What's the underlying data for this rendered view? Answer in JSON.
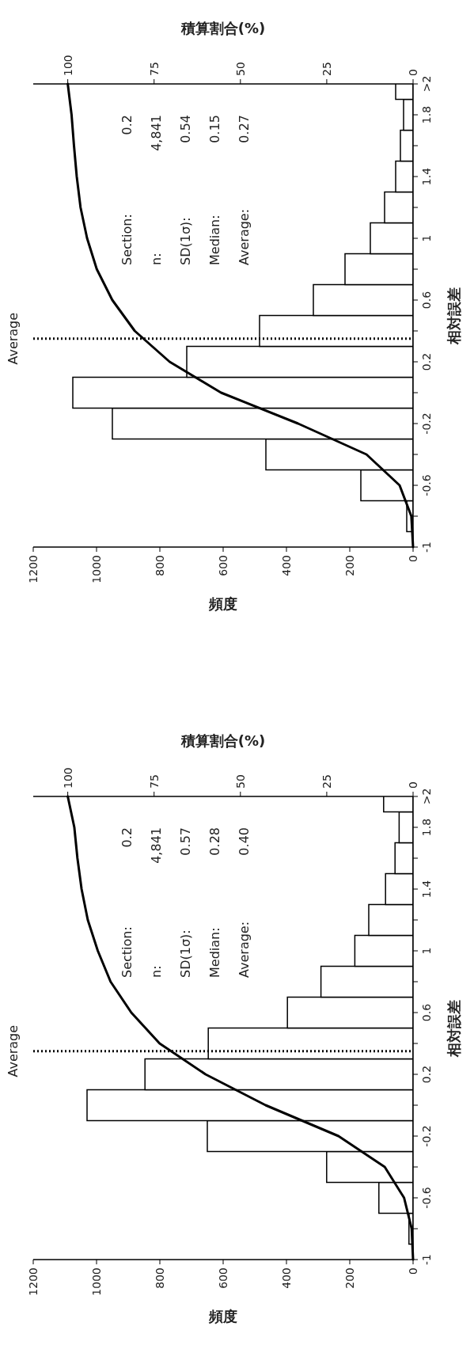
{
  "chart_data": [
    {
      "type": "bar",
      "orientation": "horizontal",
      "xlabel": "頻度",
      "ylabel": "相対誤差",
      "x2label": "積算割合(%)",
      "x": [
        -1,
        -0.8,
        -0.6,
        -0.4,
        -0.2,
        0,
        0.2,
        0.4,
        0.6,
        0.8,
        1,
        1.2,
        1.4,
        1.6,
        1.8,
        2
      ],
      "series": [
        {
          "color": "#ffffff",
          "values": [
            null,
            20,
            165,
            465,
            950,
            1075,
            715,
            485,
            315,
            215,
            135,
            90,
            55,
            40,
            30,
            55
          ]
        },
        {
          "type": "line",
          "axis": "x2",
          "color": "#000000",
          "values": [
            0,
            0.5,
            3.9,
            13.5,
            33.3,
            55.6,
            70.5,
            80.6,
            87.1,
            91.6,
            94.4,
            96.3,
            97.4,
            98.2,
            98.9,
            100
          ]
        }
      ],
      "ylim": [
        -1,
        2
      ],
      "yticks": [
        {
          "value": -1,
          "label": "-1"
        },
        {
          "value": -0.8,
          "label": null
        },
        {
          "value": -0.6,
          "label": "-0.6"
        },
        {
          "value": -0.4,
          "label": null
        },
        {
          "value": -0.2,
          "label": "-0.2"
        },
        {
          "value": 0,
          "label": null
        },
        {
          "value": 0.2,
          "label": "0.2"
        },
        {
          "value": 0.4,
          "label": null
        },
        {
          "value": 0.6,
          "label": "0.6"
        },
        {
          "value": 0.8,
          "label": null
        },
        {
          "value": 1,
          "label": "1"
        },
        {
          "value": 1.2,
          "label": null
        },
        {
          "value": 1.4,
          "label": "1.4"
        },
        {
          "value": 1.6,
          "label": null
        },
        {
          "value": 1.8,
          "label": "1.8"
        },
        {
          "value": 2,
          "label": ">2"
        }
      ],
      "xlim": [
        1200,
        0
      ],
      "xticks": [
        0,
        200,
        400,
        600,
        800,
        1000,
        1200
      ],
      "x2lim": [
        110,
        0
      ],
      "x2ticks": [
        0,
        25,
        50,
        75,
        100
      ],
      "ref_lines": [
        {
          "axis": "y",
          "value": 0.35,
          "label": "Average",
          "line_style": "dotted"
        }
      ],
      "annotations": [
        "Section:",
        "n:",
        "SD(1σ):",
        "Median:",
        "Average:",
        "0.2",
        "4,841",
        "0.54",
        "0.15",
        "0.27"
      ]
    },
    {
      "type": "bar",
      "orientation": "horizontal",
      "xlabel": "頻度",
      "ylabel": "相対誤差",
      "x2label": "積算割合(%)",
      "x": [
        -1,
        -0.8,
        -0.6,
        -0.4,
        -0.2,
        0,
        0.2,
        0.4,
        0.6,
        0.8,
        1,
        1.2,
        1.4,
        1.6,
        1.8,
        2
      ],
      "series": [
        {
          "color": "#ffffff",
          "values": [
            null,
            13,
            108,
            273,
            650,
            1030,
            847,
            647,
            397,
            291,
            184,
            140,
            87,
            57,
            44,
            93
          ]
        },
        {
          "type": "line",
          "axis": "x2",
          "color": "#000000",
          "values": [
            0,
            0.4,
            2.6,
            8.2,
            21.6,
            42.7,
            60.1,
            73.4,
            81.6,
            87.6,
            91.3,
            94.2,
            96,
            97.2,
            98.1,
            100
          ]
        }
      ],
      "ylim": [
        -1,
        2
      ],
      "yticks": [
        {
          "value": -1,
          "label": "-1"
        },
        {
          "value": -0.8,
          "label": null
        },
        {
          "value": -0.6,
          "label": "-0.6"
        },
        {
          "value": -0.4,
          "label": null
        },
        {
          "value": -0.2,
          "label": "-0.2"
        },
        {
          "value": 0,
          "label": null
        },
        {
          "value": 0.2,
          "label": "0.2"
        },
        {
          "value": 0.4,
          "label": null
        },
        {
          "value": 0.6,
          "label": "0.6"
        },
        {
          "value": 0.8,
          "label": null
        },
        {
          "value": 1,
          "label": "1"
        },
        {
          "value": 1.2,
          "label": null
        },
        {
          "value": 1.4,
          "label": "1.4"
        },
        {
          "value": 1.6,
          "label": null
        },
        {
          "value": 1.8,
          "label": "1.8"
        },
        {
          "value": 2,
          "label": ">2"
        }
      ],
      "xlim": [
        1200,
        0
      ],
      "xticks": [
        0,
        200,
        400,
        600,
        800,
        1000,
        1200
      ],
      "x2lim": [
        110,
        0
      ],
      "x2ticks": [
        0,
        25,
        50,
        75,
        100
      ],
      "ref_lines": [
        {
          "axis": "y",
          "value": 0.35,
          "label": "Average",
          "line_style": "dotted"
        }
      ],
      "annotations": [
        "Section:",
        "n:",
        "SD(1σ):",
        "Median:",
        "Average:",
        "0.2",
        "4,841",
        "0.57",
        "0.28",
        "0.40"
      ]
    }
  ]
}
